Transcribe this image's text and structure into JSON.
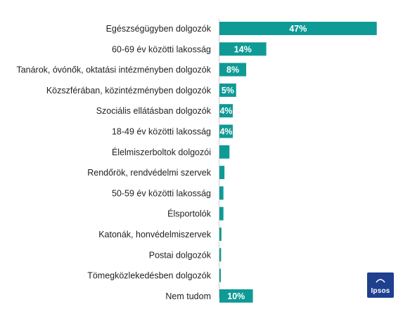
{
  "chart_data": {
    "type": "bar",
    "orientation": "horizontal",
    "title": "",
    "xlabel": "",
    "ylabel": "",
    "categories": [
      "Egészségügyben dolgozók",
      "60-69 év közötti lakosság",
      "Tanárok, óvónők, oktatási intézményben dolgozók",
      "Közszférában, közintézményben dolgozók",
      "Szociális ellátásban dolgozók",
      "18-49 év közötti lakosság",
      "Élelmiszerboltok dolgozói",
      "Rendőrök, rendvédelmi szervek",
      "50-59 év közötti lakosság",
      "Élsportolók",
      "Katonák, honvédelmiszervek",
      "Postai dolgozók",
      "Tömegközlekedésben dolgozók",
      "Nem tudom"
    ],
    "values": [
      47,
      14,
      8,
      5,
      4,
      4,
      3,
      1.5,
      1.2,
      1.2,
      0.6,
      0.5,
      0.3,
      10
    ],
    "data_labels": [
      "47%",
      "14%",
      "8%",
      "5%",
      "4%",
      "4%",
      "",
      "",
      "",
      "",
      "",
      "",
      "",
      "10%"
    ],
    "xlim": [
      0,
      50
    ],
    "bar_color": "#0f9a96",
    "grid": false,
    "legend": "none"
  },
  "logo": {
    "text": "Ipsos",
    "color": "#1f3f8f"
  }
}
